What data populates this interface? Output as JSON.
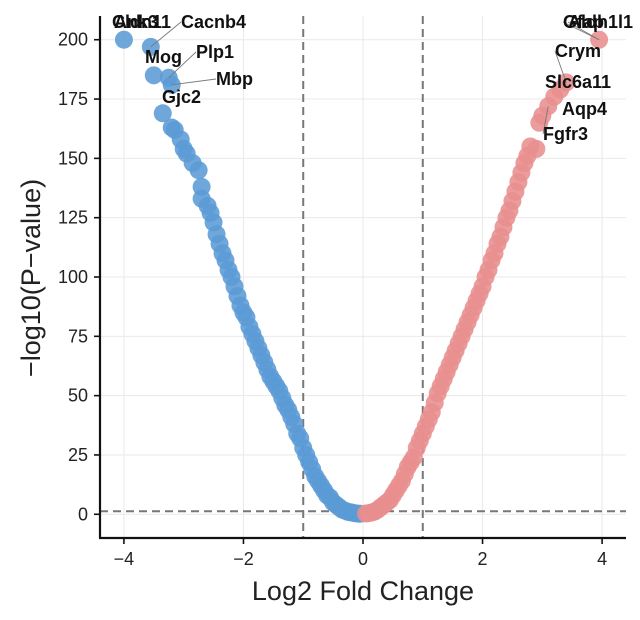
{
  "chart_data": {
    "type": "scatter",
    "title": "",
    "xlabel": "Log2 Fold Change",
    "ylabel": "−log10(P−value)",
    "xlim": [
      -4.4,
      4.4
    ],
    "ylim": [
      -10,
      210
    ],
    "x_ticks": [
      {
        "value": -4,
        "label": "−4"
      },
      {
        "value": -2,
        "label": "−2"
      },
      {
        "value": 0,
        "label": "0"
      },
      {
        "value": 2,
        "label": "2"
      },
      {
        "value": 4,
        "label": "4"
      }
    ],
    "y_ticks": [
      {
        "value": 0,
        "label": "0"
      },
      {
        "value": 25,
        "label": "25"
      },
      {
        "value": 50,
        "label": "50"
      },
      {
        "value": 75,
        "label": "75"
      },
      {
        "value": 100,
        "label": "100"
      },
      {
        "value": 125,
        "label": "125"
      },
      {
        "value": 150,
        "label": "150"
      },
      {
        "value": 175,
        "label": "175"
      },
      {
        "value": 200,
        "label": "200"
      }
    ],
    "grid": true,
    "thresholds": {
      "x": [
        -1,
        1
      ],
      "y": 1.3
    },
    "colors": {
      "down": "#5b9bd5",
      "up": "#e88e8e"
    },
    "series": [
      {
        "class": "down",
        "points": [
          [
            -4.0,
            200
          ],
          [
            -3.55,
            197
          ],
          [
            -3.5,
            185
          ],
          [
            -3.25,
            184
          ],
          [
            -3.2,
            181
          ],
          [
            -3.35,
            169
          ],
          [
            -3.2,
            163
          ],
          [
            -3.15,
            162
          ],
          [
            -3.05,
            158
          ],
          [
            -3.0,
            154
          ],
          [
            -2.95,
            152
          ],
          [
            -2.85,
            148
          ],
          [
            -2.75,
            145
          ],
          [
            -2.7,
            138
          ],
          [
            -2.7,
            133
          ],
          [
            -2.6,
            130
          ],
          [
            -2.55,
            127
          ],
          [
            -2.5,
            123
          ],
          [
            -2.45,
            118
          ],
          [
            -2.4,
            114
          ],
          [
            -2.35,
            110
          ],
          [
            -2.3,
            107
          ],
          [
            -2.25,
            103
          ],
          [
            -2.2,
            100
          ],
          [
            -2.15,
            96
          ],
          [
            -2.1,
            92
          ],
          [
            -2.05,
            88
          ],
          [
            -2.0,
            85
          ],
          [
            -1.95,
            83
          ],
          [
            -1.9,
            79
          ],
          [
            -1.85,
            76
          ],
          [
            -1.8,
            73
          ],
          [
            -1.75,
            70
          ],
          [
            -1.7,
            67
          ],
          [
            -1.65,
            64
          ],
          [
            -1.6,
            61
          ],
          [
            -1.55,
            58
          ],
          [
            -1.5,
            56
          ],
          [
            -1.45,
            54
          ],
          [
            -1.4,
            52
          ],
          [
            -1.35,
            49
          ],
          [
            -1.3,
            46
          ],
          [
            -1.25,
            44
          ],
          [
            -1.2,
            41
          ],
          [
            -1.15,
            38
          ],
          [
            -1.1,
            34
          ],
          [
            -1.05,
            32
          ],
          [
            -1.0,
            28
          ],
          [
            -0.95,
            25
          ],
          [
            -0.9,
            22
          ],
          [
            -0.85,
            19
          ],
          [
            -0.8,
            16
          ],
          [
            -0.75,
            14
          ],
          [
            -0.7,
            12
          ],
          [
            -0.65,
            10
          ],
          [
            -0.6,
            8
          ],
          [
            -0.55,
            7
          ],
          [
            -0.5,
            5
          ],
          [
            -0.45,
            4
          ],
          [
            -0.4,
            3
          ],
          [
            -0.35,
            2
          ],
          [
            -0.3,
            1.5
          ],
          [
            -0.25,
            1
          ],
          [
            -0.2,
            0.8
          ],
          [
            -0.15,
            0.5
          ],
          [
            -0.1,
            0.3
          ],
          [
            -0.05,
            0.2
          ]
        ]
      },
      {
        "class": "up",
        "points": [
          [
            0.05,
            0.3
          ],
          [
            0.1,
            0.5
          ],
          [
            0.15,
            0.8
          ],
          [
            0.2,
            1.2
          ],
          [
            0.25,
            2
          ],
          [
            0.3,
            3
          ],
          [
            0.35,
            4
          ],
          [
            0.4,
            5
          ],
          [
            0.45,
            6
          ],
          [
            0.5,
            8
          ],
          [
            0.55,
            10
          ],
          [
            0.6,
            12
          ],
          [
            0.65,
            14
          ],
          [
            0.7,
            17
          ],
          [
            0.75,
            20
          ],
          [
            0.8,
            22
          ],
          [
            0.85,
            24
          ],
          [
            0.9,
            28
          ],
          [
            0.95,
            31
          ],
          [
            1.0,
            34
          ],
          [
            1.05,
            37
          ],
          [
            1.1,
            40
          ],
          [
            1.15,
            43
          ],
          [
            1.2,
            47
          ],
          [
            1.25,
            51
          ],
          [
            1.3,
            54
          ],
          [
            1.35,
            57
          ],
          [
            1.4,
            60
          ],
          [
            1.45,
            63
          ],
          [
            1.5,
            66
          ],
          [
            1.55,
            69
          ],
          [
            1.6,
            72
          ],
          [
            1.65,
            75
          ],
          [
            1.7,
            78
          ],
          [
            1.75,
            81
          ],
          [
            1.8,
            84
          ],
          [
            1.85,
            87
          ],
          [
            1.9,
            90
          ],
          [
            1.95,
            93
          ],
          [
            2.0,
            96
          ],
          [
            2.05,
            100
          ],
          [
            2.1,
            103
          ],
          [
            2.15,
            107
          ],
          [
            2.2,
            110
          ],
          [
            2.25,
            114
          ],
          [
            2.3,
            117
          ],
          [
            2.35,
            121
          ],
          [
            2.4,
            125
          ],
          [
            2.45,
            128
          ],
          [
            2.5,
            132
          ],
          [
            2.55,
            136
          ],
          [
            2.6,
            140
          ],
          [
            2.65,
            144
          ],
          [
            2.7,
            148
          ],
          [
            2.75,
            151
          ],
          [
            2.8,
            155
          ],
          [
            2.9,
            154
          ],
          [
            2.95,
            165
          ],
          [
            3.0,
            168
          ],
          [
            3.1,
            172
          ],
          [
            3.2,
            176
          ],
          [
            3.3,
            179
          ],
          [
            3.4,
            182
          ],
          [
            3.95,
            200
          ]
        ]
      }
    ],
    "labels": [
      {
        "text": "Cldn11",
        "x": -4.0,
        "y": 200
      },
      {
        "text": "Ank3",
        "x": -4.0,
        "y": 200
      },
      {
        "text": "Cacnb4",
        "x": -3.55,
        "y": 197
      },
      {
        "text": "Mog",
        "x": -3.5,
        "y": 185
      },
      {
        "text": "Plp1",
        "x": -3.25,
        "y": 184
      },
      {
        "text": "Mbp",
        "x": -3.2,
        "y": 181
      },
      {
        "text": "Gjc2",
        "x": -3.35,
        "y": 169
      },
      {
        "text": "Gfap",
        "x": 3.95,
        "y": 200
      },
      {
        "text": "Aldh1l1",
        "x": 3.95,
        "y": 200
      },
      {
        "text": "Crym",
        "x": 3.4,
        "y": 182
      },
      {
        "text": "Slc6a11",
        "x": 3.3,
        "y": 179
      },
      {
        "text": "Aqp4",
        "x": 3.2,
        "y": 176
      },
      {
        "text": "Fgfr3",
        "x": 3.1,
        "y": 172
      }
    ]
  }
}
